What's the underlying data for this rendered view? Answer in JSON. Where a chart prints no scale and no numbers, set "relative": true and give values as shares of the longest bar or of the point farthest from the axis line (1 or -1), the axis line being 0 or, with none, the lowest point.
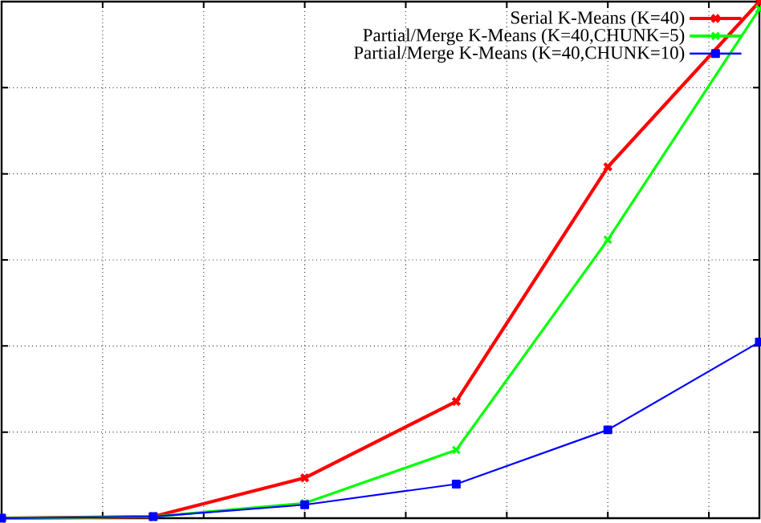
{
  "chart_data": {
    "type": "line",
    "relative": true,
    "categories": [
      null,
      null,
      null,
      null,
      null,
      null
    ],
    "grid": true,
    "legend": "top right",
    "series": [
      {
        "name": "Serial K-Means (K=40)",
        "color": "#ff0000",
        "marker": "cross",
        "values": [
          0,
          0.003,
          0.078,
          0.226,
          0.68,
          1
        ]
      },
      {
        "name": "Partial/Merge K-Means (K=40,CHUNK=5)",
        "color": "#00ff00",
        "marker": "cross",
        "values": [
          0,
          0.003,
          0.029,
          0.132,
          0.539,
          0.986
        ]
      },
      {
        "name": "Partial/Merge K-Means (K=40,CHUNK=10)",
        "color": "#0000ff",
        "marker": "square",
        "values": [
          0,
          0.003,
          0.026,
          0.066,
          0.171,
          0.341
        ]
      }
    ]
  }
}
